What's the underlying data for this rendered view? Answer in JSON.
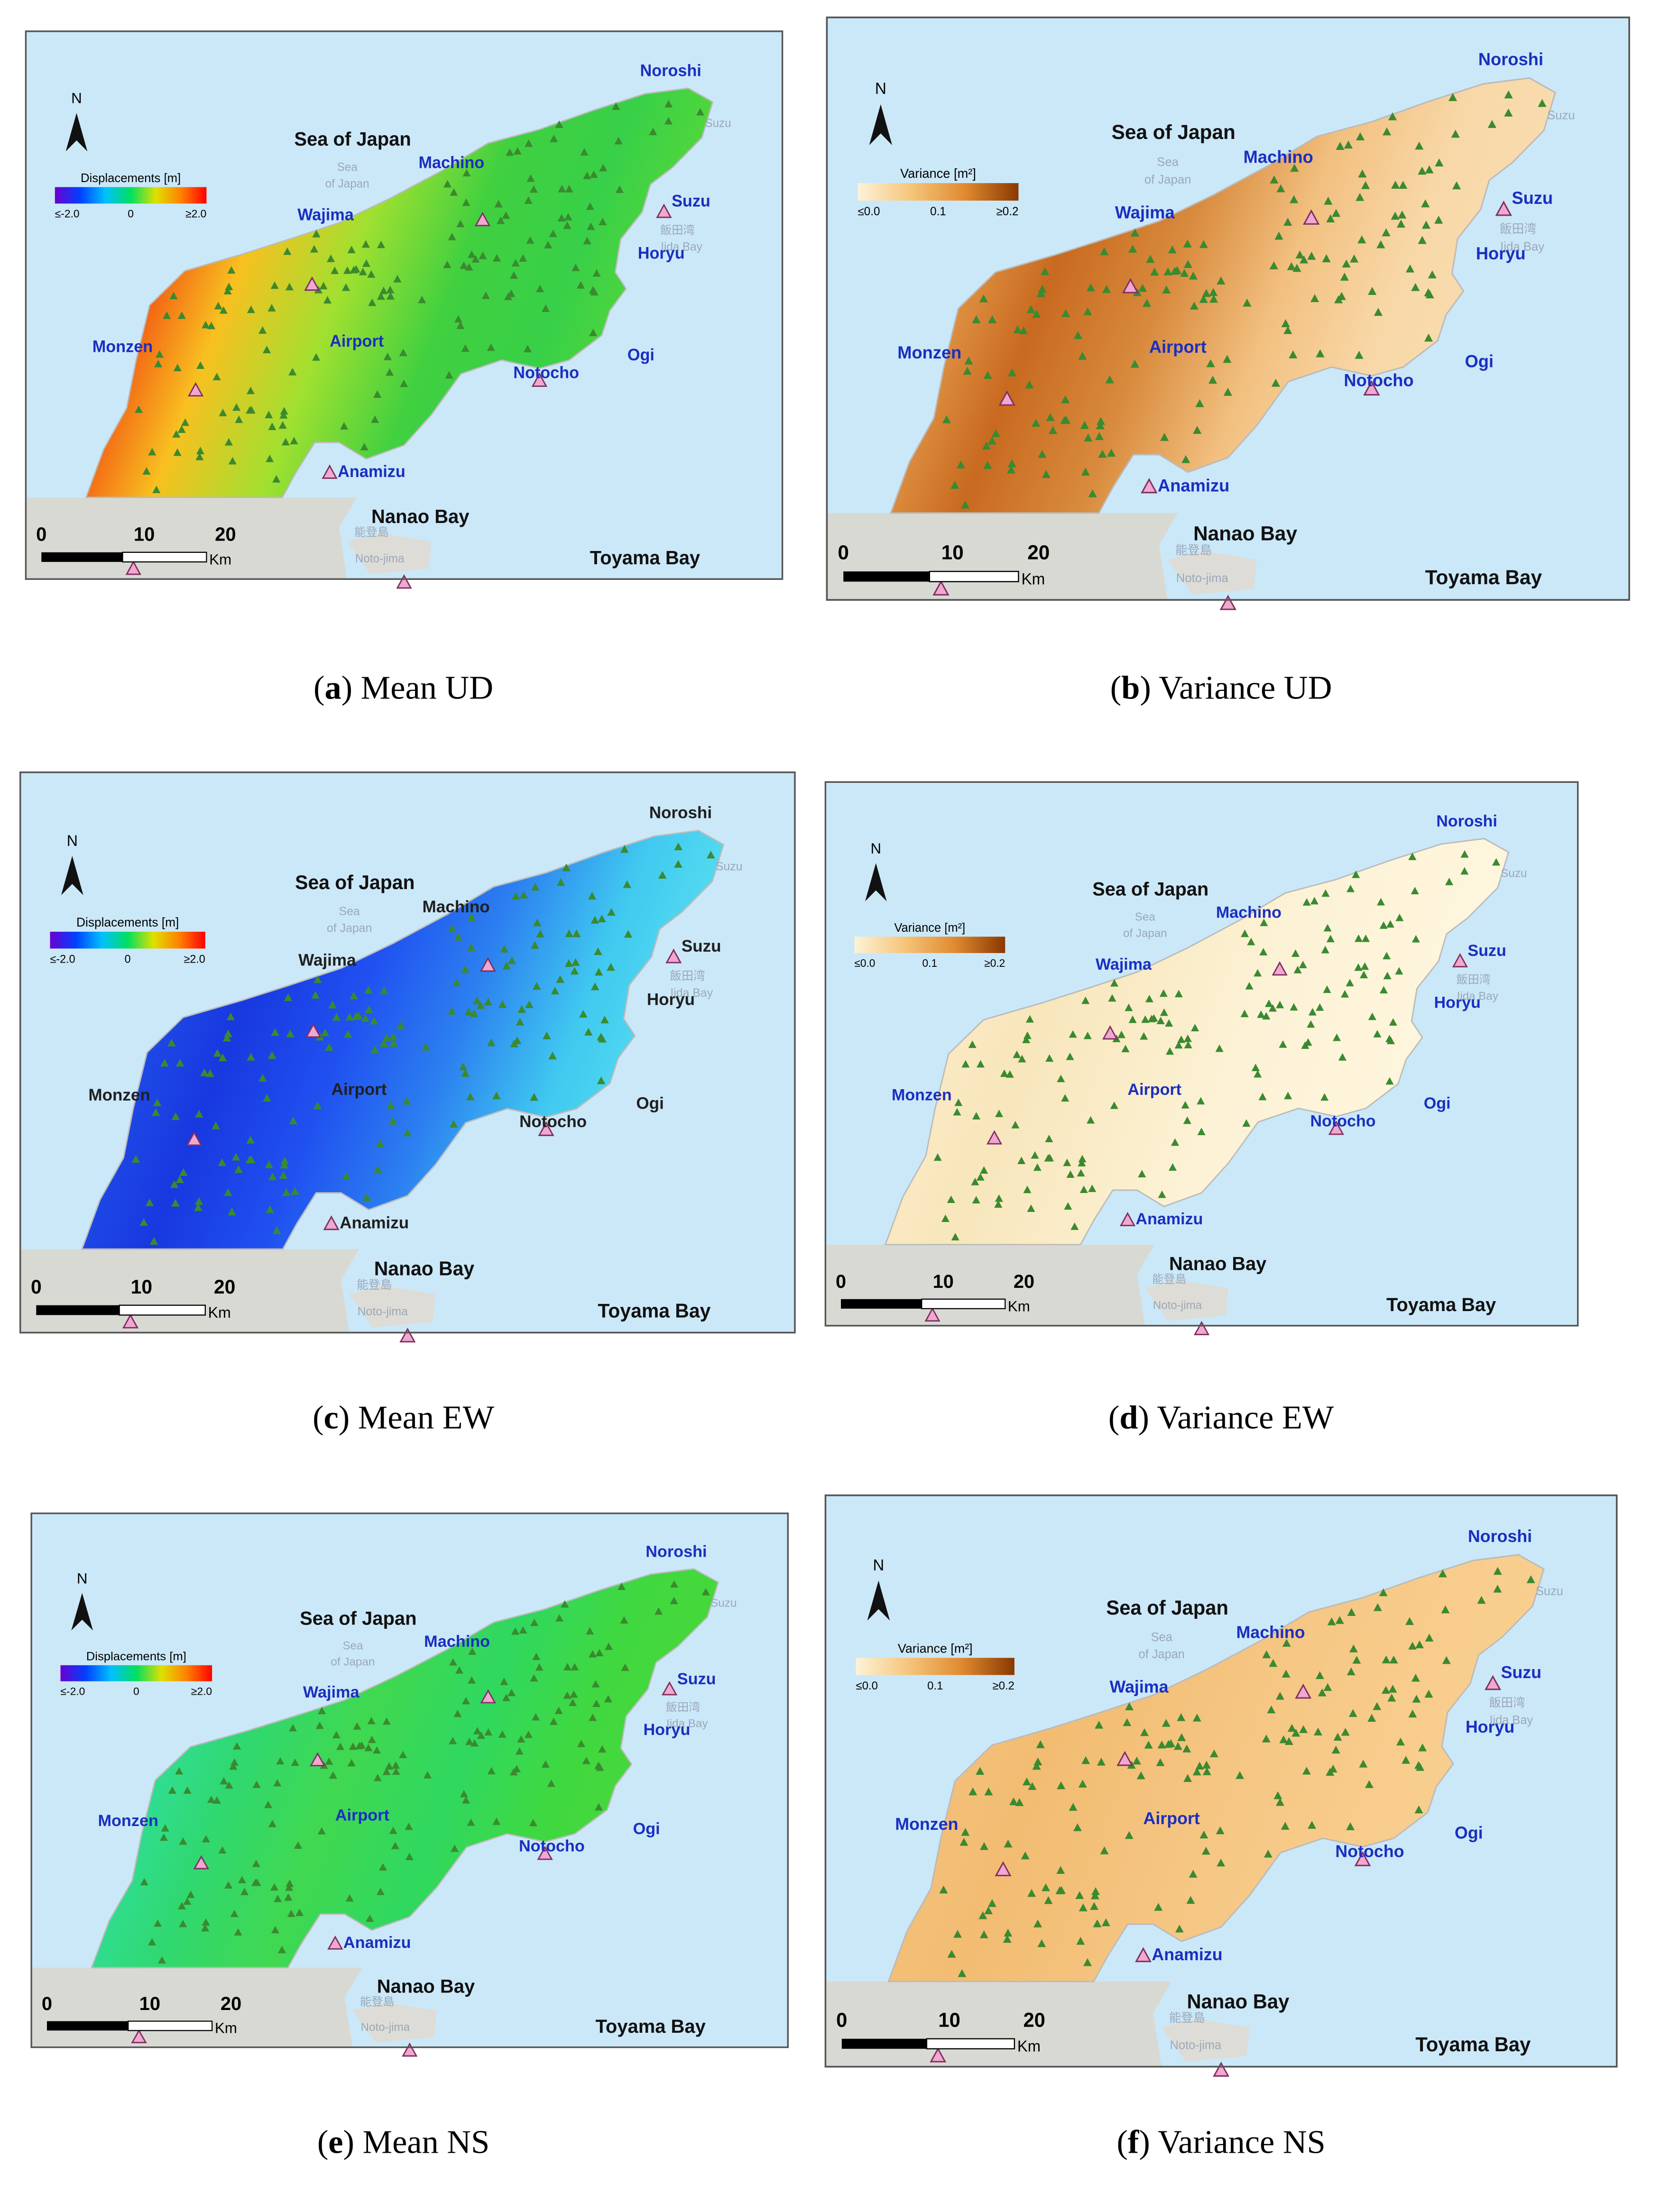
{
  "panels": [
    {
      "id": "a",
      "north": "N",
      "caption": {
        "open": "(",
        "letter": "a",
        "rest": ") Mean UD"
      },
      "legend": {
        "title": "Displacements [m]",
        "min": "≤-2.0",
        "mid": "0",
        "max": "≥2.0",
        "colors": [
          "#6a00d0",
          "#0040ff",
          "#00c0ff",
          "#00e060",
          "#e0e000",
          "#ff8000",
          "#ff0000"
        ]
      },
      "land_colors": [
        "#e81010",
        "#f03a10",
        "#f8c020",
        "#a0e030",
        "#40d040",
        "#38d048",
        "#58d838"
      ],
      "place_color": "#1a2fc0",
      "labels": {
        "noroshi": "Noroshi",
        "suzu_cape": "Suzu",
        "sea_of_japan": "Sea of Japan",
        "sea_faint": "Sea",
        "of_japan_faint": "of Japan",
        "machino": "Machino",
        "suzu": "Suzu",
        "wajima": "Wajima",
        "horyu": "Horyu",
        "iida_jp": "飯田湾",
        "iida_bay": "Iida Bay",
        "airport": "Airport",
        "monzen": "Monzen",
        "notocho": "Notocho",
        "ogi": "Ogi",
        "anamizu": "Anamizu",
        "nanao_bay": "Nanao Bay",
        "notojima_jp": "能登島",
        "notojima": "Noto-jima",
        "toyama_bay": "Toyama Bay"
      },
      "scale": {
        "zero": "0",
        "ten": "10",
        "twenty": "20",
        "unit": "Km"
      }
    },
    {
      "id": "b",
      "north": "N",
      "caption": {
        "open": "(",
        "letter": "b",
        "rest": ") Variance UD"
      },
      "legend": {
        "title": "Variance [m²]",
        "min": "≤0.0",
        "mid": "0.1",
        "max": "≥0.2",
        "colors": [
          "#fdf3d8",
          "#f5c57a",
          "#e08a30",
          "#8a3800"
        ]
      },
      "land_colors": [
        "#f4c890",
        "#e8a050",
        "#c86a20",
        "#d88a3c",
        "#f2c080",
        "#f8d8a8",
        "#f8dcb0"
      ],
      "place_color": "#1a2fc0",
      "labels": {
        "noroshi": "Noroshi",
        "suzu_cape": "Suzu",
        "sea_of_japan": "Sea of Japan",
        "sea_faint": "Sea",
        "of_japan_faint": "of Japan",
        "machino": "Machino",
        "suzu": "Suzu",
        "wajima": "Wajima",
        "horyu": "Horyu",
        "iida_jp": "飯田湾",
        "iida_bay": "Iida Bay",
        "airport": "Airport",
        "monzen": "Monzen",
        "notocho": "Notocho",
        "ogi": "Ogi",
        "anamizu": "Anamizu",
        "nanao_bay": "Nanao Bay",
        "notojima_jp": "能登島",
        "notojima": "Noto-jima",
        "toyama_bay": "Toyama Bay"
      },
      "scale": {
        "zero": "0",
        "ten": "10",
        "twenty": "20",
        "unit": "Km"
      }
    },
    {
      "id": "c",
      "north": "N",
      "caption": {
        "open": "(",
        "letter": "c",
        "rest": ") Mean EW"
      },
      "legend": {
        "title": "Displacements [m]",
        "min": "≤-2.0",
        "mid": "0",
        "max": "≥2.0",
        "colors": [
          "#6a00d0",
          "#0040ff",
          "#00c0ff",
          "#00e060",
          "#e0e000",
          "#ff8000",
          "#ff0000"
        ]
      },
      "land_colors": [
        "#40b8f0",
        "#2050e8",
        "#1838e0",
        "#2050f0",
        "#2c80f0",
        "#40c8f0",
        "#58e0f0"
      ],
      "place_color": "#202020",
      "labels": {
        "noroshi": "Noroshi",
        "suzu_cape": "Suzu",
        "sea_of_japan": "Sea of Japan",
        "sea_faint": "Sea",
        "of_japan_faint": "of Japan",
        "machino": "Machino",
        "suzu": "Suzu",
        "wajima": "Wajima",
        "horyu": "Horyu",
        "iida_jp": "飯田湾",
        "iida_bay": "Iida Bay",
        "airport": "Airport",
        "monzen": "Monzen",
        "notocho": "Notocho",
        "ogi": "Ogi",
        "anamizu": "Anamizu",
        "nanao_bay": "Nanao Bay",
        "notojima_jp": "能登島",
        "notojima": "Noto-jima",
        "toyama_bay": "Toyama Bay"
      },
      "scale": {
        "zero": "0",
        "ten": "10",
        "twenty": "20",
        "unit": "Km"
      }
    },
    {
      "id": "d",
      "north": "N",
      "caption": {
        "open": "(",
        "letter": "d",
        "rest": ") Variance EW"
      },
      "legend": {
        "title": "Variance [m²]",
        "min": "≤0.0",
        "mid": "0.1",
        "max": "≥0.2",
        "colors": [
          "#fdf3d8",
          "#f5c57a",
          "#e08a30",
          "#8a3800"
        ]
      },
      "land_colors": [
        "#fcf0d0",
        "#faeac4",
        "#f8e6bc",
        "#faecc8",
        "#fcf2d6",
        "#fdf4da",
        "#fdf6de"
      ],
      "place_color": "#1a2fc0",
      "labels": {
        "noroshi": "Noroshi",
        "suzu_cape": "Suzu",
        "sea_of_japan": "Sea of Japan",
        "sea_faint": "Sea",
        "of_japan_faint": "of Japan",
        "machino": "Machino",
        "suzu": "Suzu",
        "wajima": "Wajima",
        "horyu": "Horyu",
        "iida_jp": "飯田湾",
        "iida_bay": "Iida Bay",
        "airport": "Airport",
        "monzen": "Monzen",
        "notocho": "Notocho",
        "ogi": "Ogi",
        "anamizu": "Anamizu",
        "nanao_bay": "Nanao Bay",
        "notojima_jp": "能登島",
        "notojima": "Noto-jima",
        "toyama_bay": "Toyama Bay"
      },
      "scale": {
        "zero": "0",
        "ten": "10",
        "twenty": "20",
        "unit": "Km"
      }
    },
    {
      "id": "e",
      "north": "N",
      "caption": {
        "open": "(",
        "letter": "e",
        "rest": ") Mean NS"
      },
      "legend": {
        "title": "Displacements [m]",
        "min": "≤-2.0",
        "mid": "0",
        "max": "≥2.0",
        "colors": [
          "#6a00d0",
          "#0040ff",
          "#00c0ff",
          "#00e060",
          "#e0e000",
          "#ff8000",
          "#ff0000"
        ]
      },
      "land_colors": [
        "#40e0c8",
        "#30e0a0",
        "#30d870",
        "#40d850",
        "#30d860",
        "#40d840",
        "#48d838"
      ],
      "place_color": "#1a2fc0",
      "labels": {
        "noroshi": "Noroshi",
        "suzu_cape": "Suzu",
        "sea_of_japan": "Sea of Japan",
        "sea_faint": "Sea",
        "of_japan_faint": "of Japan",
        "machino": "Machino",
        "suzu": "Suzu",
        "wajima": "Wajima",
        "horyu": "Horyu",
        "iida_jp": "飯田湾",
        "iida_bay": "Iida Bay",
        "airport": "Airport",
        "monzen": "Monzen",
        "notocho": "Notocho",
        "ogi": "Ogi",
        "anamizu": "Anamizu",
        "nanao_bay": "Nanao Bay",
        "notojima_jp": "能登島",
        "notojima": "Noto-jima",
        "toyama_bay": "Toyama Bay"
      },
      "scale": {
        "zero": "0",
        "ten": "10",
        "twenty": "20",
        "unit": "Km"
      }
    },
    {
      "id": "f",
      "north": "N",
      "caption": {
        "open": "(",
        "letter": "f",
        "rest": ") Variance NS"
      },
      "legend": {
        "title": "Variance [m²]",
        "min": "≤0.0",
        "mid": "0.1",
        "max": "≥0.2",
        "colors": [
          "#fdf3d8",
          "#f5c57a",
          "#e08a30",
          "#8a3800"
        ]
      },
      "land_colors": [
        "#f6c884",
        "#f4c07a",
        "#f2bc72",
        "#f4c27c",
        "#f6c886",
        "#f8cc8c",
        "#f8d090"
      ],
      "place_color": "#1a2fc0",
      "labels": {
        "noroshi": "Noroshi",
        "suzu_cape": "Suzu",
        "sea_of_japan": "Sea of Japan",
        "sea_faint": "Sea",
        "of_japan_faint": "of Japan",
        "machino": "Machino",
        "suzu": "Suzu",
        "wajima": "Wajima",
        "horyu": "Horyu",
        "iida_jp": "飯田湾",
        "iida_bay": "Iida Bay",
        "airport": "Airport",
        "monzen": "Monzen",
        "notocho": "Notocho",
        "ogi": "Ogi",
        "anamizu": "Anamizu",
        "nanao_bay": "Nanao Bay",
        "notojima_jp": "能登島",
        "notojima": "Noto-jima",
        "toyama_bay": "Toyama Bay"
      },
      "scale": {
        "zero": "0",
        "ten": "10",
        "twenty": "20",
        "unit": "Km"
      }
    }
  ]
}
